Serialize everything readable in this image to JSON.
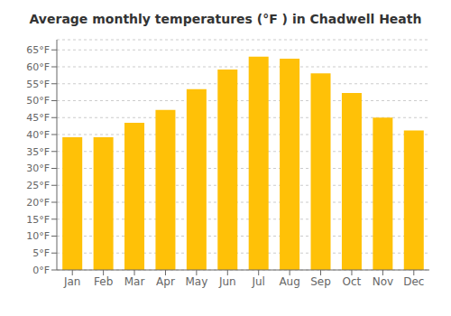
{
  "chart_data": {
    "type": "bar",
    "title": "Average monthly temperatures (°F ) in Chadwell Heath",
    "categories": [
      "Jan",
      "Feb",
      "Mar",
      "Apr",
      "May",
      "Jun",
      "Jul",
      "Aug",
      "Sep",
      "Oct",
      "Nov",
      "Dec"
    ],
    "values": [
      39.2,
      39.2,
      43.5,
      47.3,
      53.4,
      59.2,
      63.0,
      62.4,
      58.1,
      52.3,
      45.0,
      41.2
    ],
    "color": "#FFC107",
    "ylim": [
      0,
      68
    ],
    "yticks": [
      {
        "value": 0,
        "label": "0°F"
      },
      {
        "value": 5,
        "label": "5°F"
      },
      {
        "value": 10,
        "label": "10°F"
      },
      {
        "value": 15,
        "label": "15°F"
      },
      {
        "value": 20,
        "label": "20°F"
      },
      {
        "value": 25,
        "label": "25°F"
      },
      {
        "value": 30,
        "label": "30°F"
      },
      {
        "value": 35,
        "label": "35°F"
      },
      {
        "value": 40,
        "label": "40°F"
      },
      {
        "value": 45,
        "label": "45°F"
      },
      {
        "value": 50,
        "label": "50°F"
      },
      {
        "value": 55,
        "label": "55°F"
      },
      {
        "value": 60,
        "label": "60°F"
      },
      {
        "value": 65,
        "label": "65°F"
      }
    ],
    "grid": true
  }
}
